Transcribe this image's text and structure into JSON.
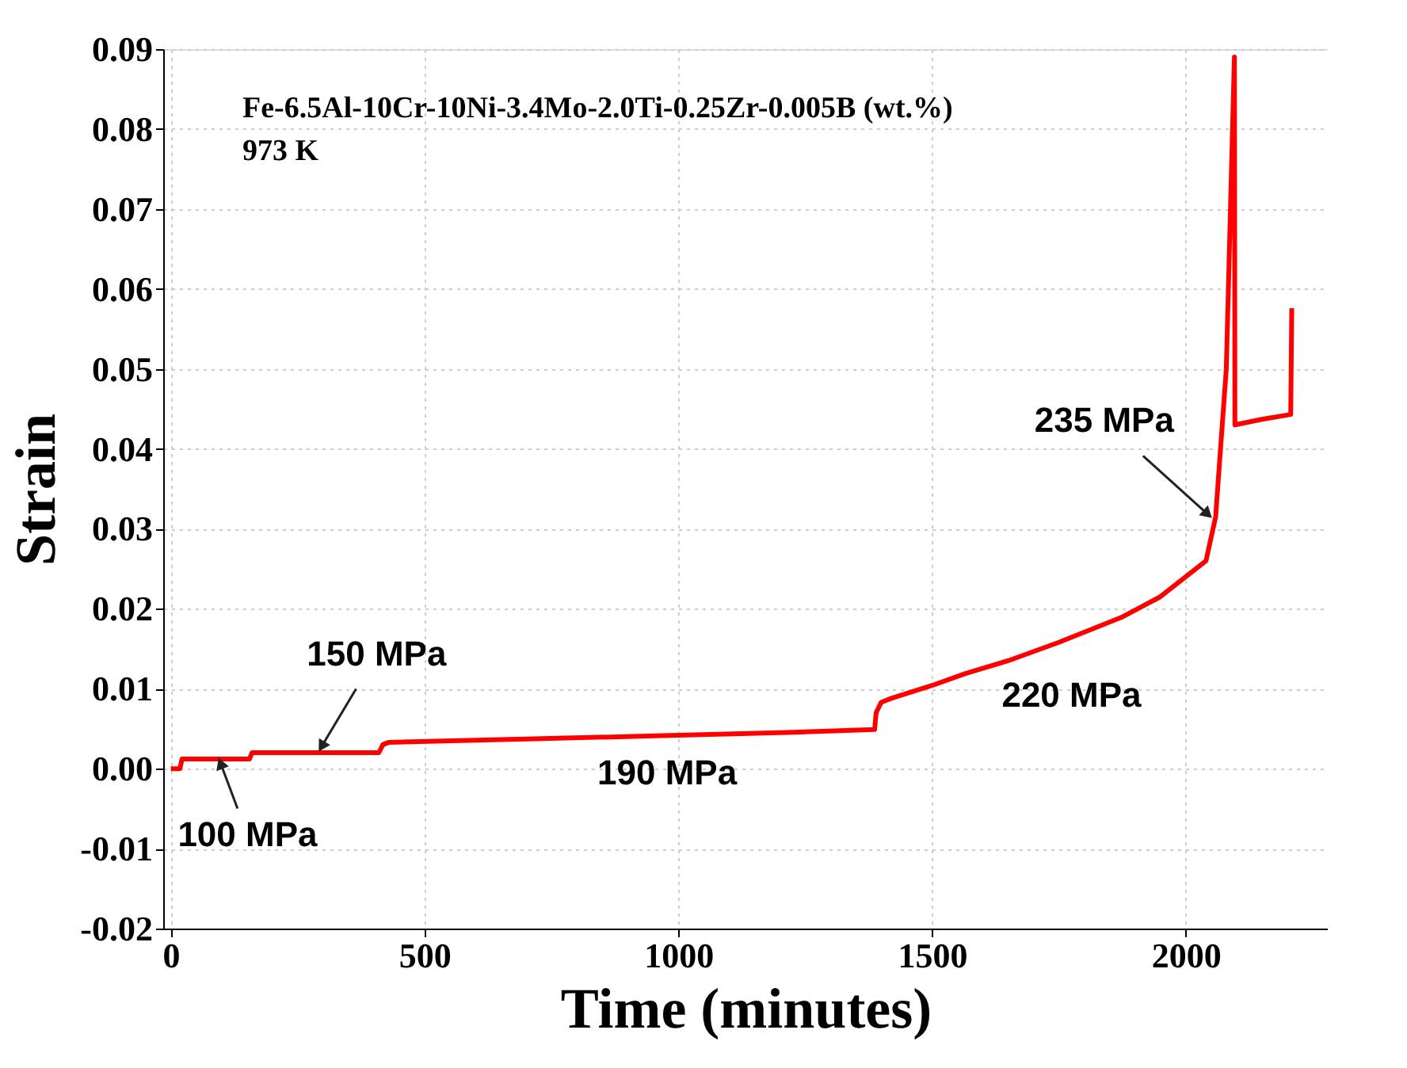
{
  "chart_data": {
    "type": "line",
    "xlabel": "Time (minutes)",
    "ylabel": "Strain",
    "x": [
      0,
      18,
      22,
      155,
      160,
      410,
      418,
      430,
      700,
      954,
      1200,
      1387,
      1390,
      1400,
      1420,
      1500,
      1566,
      1650,
      1750,
      1876,
      1950,
      2040,
      2059,
      2080,
      2096,
      2097,
      2150,
      2207,
      2209
    ],
    "series": [
      {
        "color": "#ff0000",
        "values": [
          0,
          0,
          0.0012,
          0.0012,
          0.002,
          0.002,
          0.003,
          0.0033,
          0.0037,
          0.0041,
          0.0045,
          0.0049,
          0.007,
          0.0083,
          0.0088,
          0.0104,
          0.0119,
          0.0135,
          0.0158,
          0.019,
          0.0215,
          0.026,
          0.0315,
          0.05,
          0.089,
          0.043,
          0.0437,
          0.0443,
          0.0576
        ]
      }
    ],
    "xlim": [
      -15,
      2280
    ],
    "xticks": [
      0,
      500,
      1000,
      1500,
      2000
    ],
    "ylim": [
      -0.02,
      0.09
    ],
    "yticks": [
      -0.02,
      -0.01,
      {
        "value": 0,
        "label": "0.00"
      },
      0.01,
      0.02,
      0.03,
      0.04,
      0.05,
      0.06,
      0.07,
      0.08,
      0.09
    ],
    "grid": true,
    "marker": "none",
    "line_style": "solid",
    "annotations": [
      "Fe-6.5Al-10Cr-10Ni-3.4Mo-2.0Ti-0.25Zr-0.005B (wt.%)",
      "973 K",
      {
        "text": "100 MPa",
        "x": 95,
        "y": 0.0012
      },
      {
        "text": "150 MPa",
        "x": 290,
        "y": 0.002
      },
      {
        "text": "190 MPa",
        "x": 1000,
        "y": 0.0042
      },
      {
        "text": "220 MPa",
        "x": 1650,
        "y": 0.0135
      },
      {
        "text": "235 MPa",
        "x": 2058,
        "y": 0.031
      }
    ]
  }
}
